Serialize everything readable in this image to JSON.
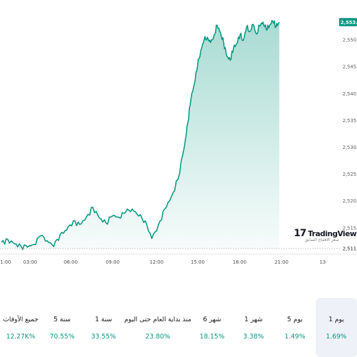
{
  "chart_data": {
    "type": "area",
    "x_tick_labels": [
      "01:00",
      "03:00",
      "06:00",
      "09:00",
      "12:00",
      "15:00",
      "18:00",
      "21:00",
      "13"
    ],
    "y_tick_labels": [
      "2,515.00",
      "2,520.00",
      "2,525.00",
      "2,530.00",
      "2,535.00",
      "2,540.00",
      "2,545.00",
      "2,550.00"
    ],
    "y_ticks": [
      2515,
      2520,
      2525,
      2530,
      2535,
      2540,
      2545,
      2550
    ],
    "ylim": [
      2511.14,
      2553.33
    ],
    "x_hours": [
      0.0,
      0.5,
      1.0,
      1.5,
      2.0,
      2.5,
      3.0,
      3.5,
      4.0,
      4.5,
      5.0,
      5.5,
      6.0,
      6.5,
      7.0,
      7.5,
      8.0,
      8.5,
      9.0,
      9.5,
      10.0,
      10.5,
      11.0,
      11.5,
      12.0,
      12.5,
      13.0,
      13.5,
      14.0,
      14.25,
      14.5,
      14.75,
      15.0,
      15.25,
      15.5,
      15.75,
      16.0,
      16.25,
      16.5,
      16.75,
      17.0,
      17.25,
      17.5,
      17.75,
      18.0,
      18.25,
      18.5,
      18.75,
      19.0,
      19.25,
      19.5,
      19.75,
      20.0,
      20.25,
      20.5,
      20.75,
      21.0,
      21.25
    ],
    "values": [
      2512.3,
      2512.8,
      2512.0,
      2511.6,
      2511.4,
      2511.9,
      2513.5,
      2512.6,
      2511.5,
      2513.8,
      2514.6,
      2516.3,
      2515.6,
      2517.0,
      2518.8,
      2516.8,
      2515.9,
      2517.2,
      2516.9,
      2517.9,
      2518.5,
      2517.2,
      2516.3,
      2513.0,
      2515.5,
      2518.5,
      2520.8,
      2524.0,
      2530.2,
      2534.5,
      2539.0,
      2541.8,
      2545.2,
      2548.0,
      2550.0,
      2550.5,
      2549.5,
      2550.8,
      2552.7,
      2551.4,
      2549.3,
      2546.9,
      2546.2,
      2548.4,
      2549.3,
      2550.9,
      2549.9,
      2552.4,
      2551.6,
      2552.9,
      2551.1,
      2552.6,
      2553.3,
      2551.9,
      2552.6,
      2553.5,
      2552.4,
      2553.3
    ],
    "current_price": 2553.29,
    "current_price_label": "2,553.29",
    "base_price": 2511.14,
    "base_price_label": "2,511.14",
    "line_color": "#089981",
    "fill_color": "#089981",
    "grid": false
  },
  "watermark": {
    "logo": "17",
    "name": "TradingView",
    "sub": "سعر الافتتاح السابق"
  },
  "periods": [
    {
      "label": "1 يوم",
      "value": "1.69%",
      "active": true
    },
    {
      "label": "5 يوم",
      "value": "1.49%",
      "active": false
    },
    {
      "label": "1 شهر",
      "value": "3.38%",
      "active": false
    },
    {
      "label": "6 شهر",
      "value": "18.15%",
      "active": false
    },
    {
      "label": "منذ بداية العام حتى اليوم",
      "value": "23.80%",
      "active": false
    },
    {
      "label": "1 سنة",
      "value": "33.55%",
      "active": false
    },
    {
      "label": "5 سنة",
      "value": "70.55%",
      "active": false
    },
    {
      "label": "جميع الأوقات",
      "value": "12.27K%",
      "active": false
    }
  ]
}
